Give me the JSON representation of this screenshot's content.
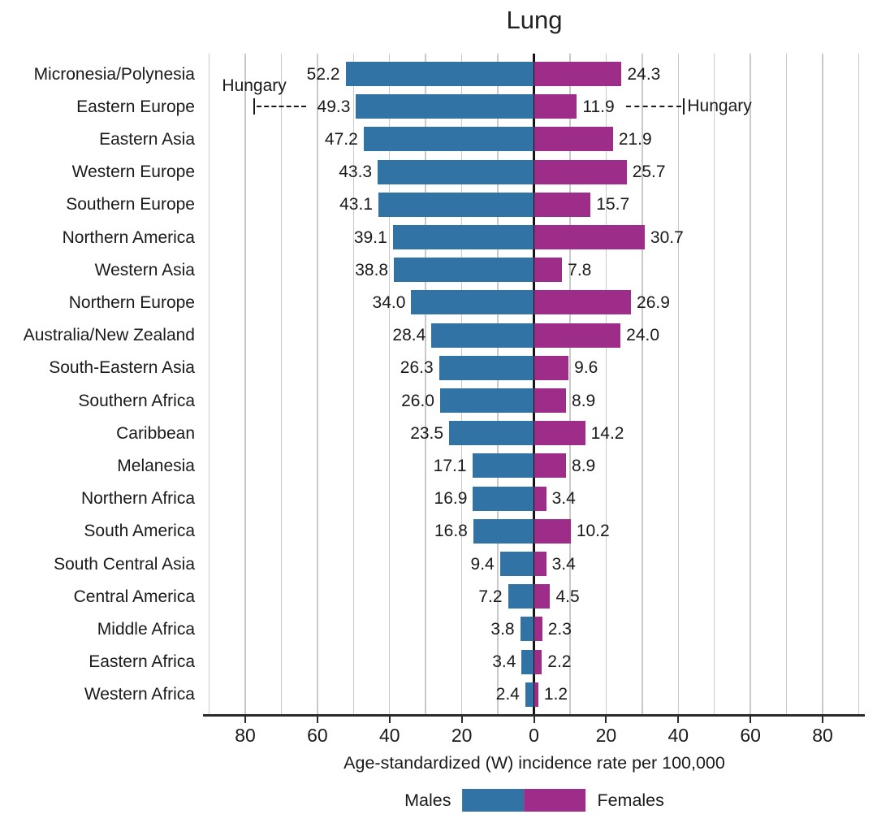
{
  "chart_data": {
    "type": "bar",
    "variant": "diverging-horizontal",
    "title": "Lung",
    "xlabel": "Age-standardized (W) incidence rate per 100,000",
    "categories": [
      "Micronesia/Polynesia",
      "Eastern Europe",
      "Eastern Asia",
      "Western Europe",
      "Southern Europe",
      "Northern America",
      "Western Asia",
      "Northern Europe",
      "Australia/New Zealand",
      "South-Eastern Asia",
      "Southern Africa",
      "Caribbean",
      "Melanesia",
      "Northern Africa",
      "South America",
      "South Central Asia",
      "Central America",
      "Middle Africa",
      "Eastern Africa",
      "Western Africa"
    ],
    "series": [
      {
        "name": "Males",
        "side": "left",
        "color": "#3273a6",
        "values": [
          52.2,
          49.3,
          47.2,
          43.3,
          43.1,
          39.1,
          38.8,
          34.0,
          28.4,
          26.3,
          26.0,
          23.5,
          17.1,
          16.9,
          16.8,
          9.4,
          7.2,
          3.8,
          3.4,
          2.4
        ]
      },
      {
        "name": "Females",
        "side": "right",
        "color": "#9e2d8a",
        "values": [
          24.3,
          11.9,
          21.9,
          25.7,
          15.7,
          30.7,
          7.8,
          26.9,
          24.0,
          9.6,
          8.9,
          14.2,
          8.9,
          3.4,
          10.2,
          3.4,
          4.5,
          2.3,
          2.2,
          1.2
        ]
      }
    ],
    "xlim": [
      -91.7,
      91.7
    ],
    "gridline_step": 10,
    "grid_on": true,
    "ticks": [
      {
        "value": -80,
        "label": "80"
      },
      {
        "value": -60,
        "label": "60"
      },
      {
        "value": -40,
        "label": "40"
      },
      {
        "value": -20,
        "label": "20"
      },
      {
        "value": 0,
        "label": "0"
      },
      {
        "value": 20,
        "label": "20"
      },
      {
        "value": 40,
        "label": "40"
      },
      {
        "value": 60,
        "label": "60"
      },
      {
        "value": 80,
        "label": "80"
      }
    ],
    "annotations": [
      {
        "label": "Hungary",
        "target_category": "Eastern Europe",
        "series": "Males",
        "side": "left",
        "x": 77.5
      },
      {
        "label": "Hungary",
        "target_category": "Eastern Europe",
        "series": "Females",
        "side": "right",
        "x": 41.6
      }
    ],
    "legend": {
      "position": "bottom-center",
      "items": [
        {
          "label": "Males",
          "color": "#3273a6"
        },
        {
          "label": "Females",
          "color": "#9e2d8a"
        }
      ]
    }
  }
}
